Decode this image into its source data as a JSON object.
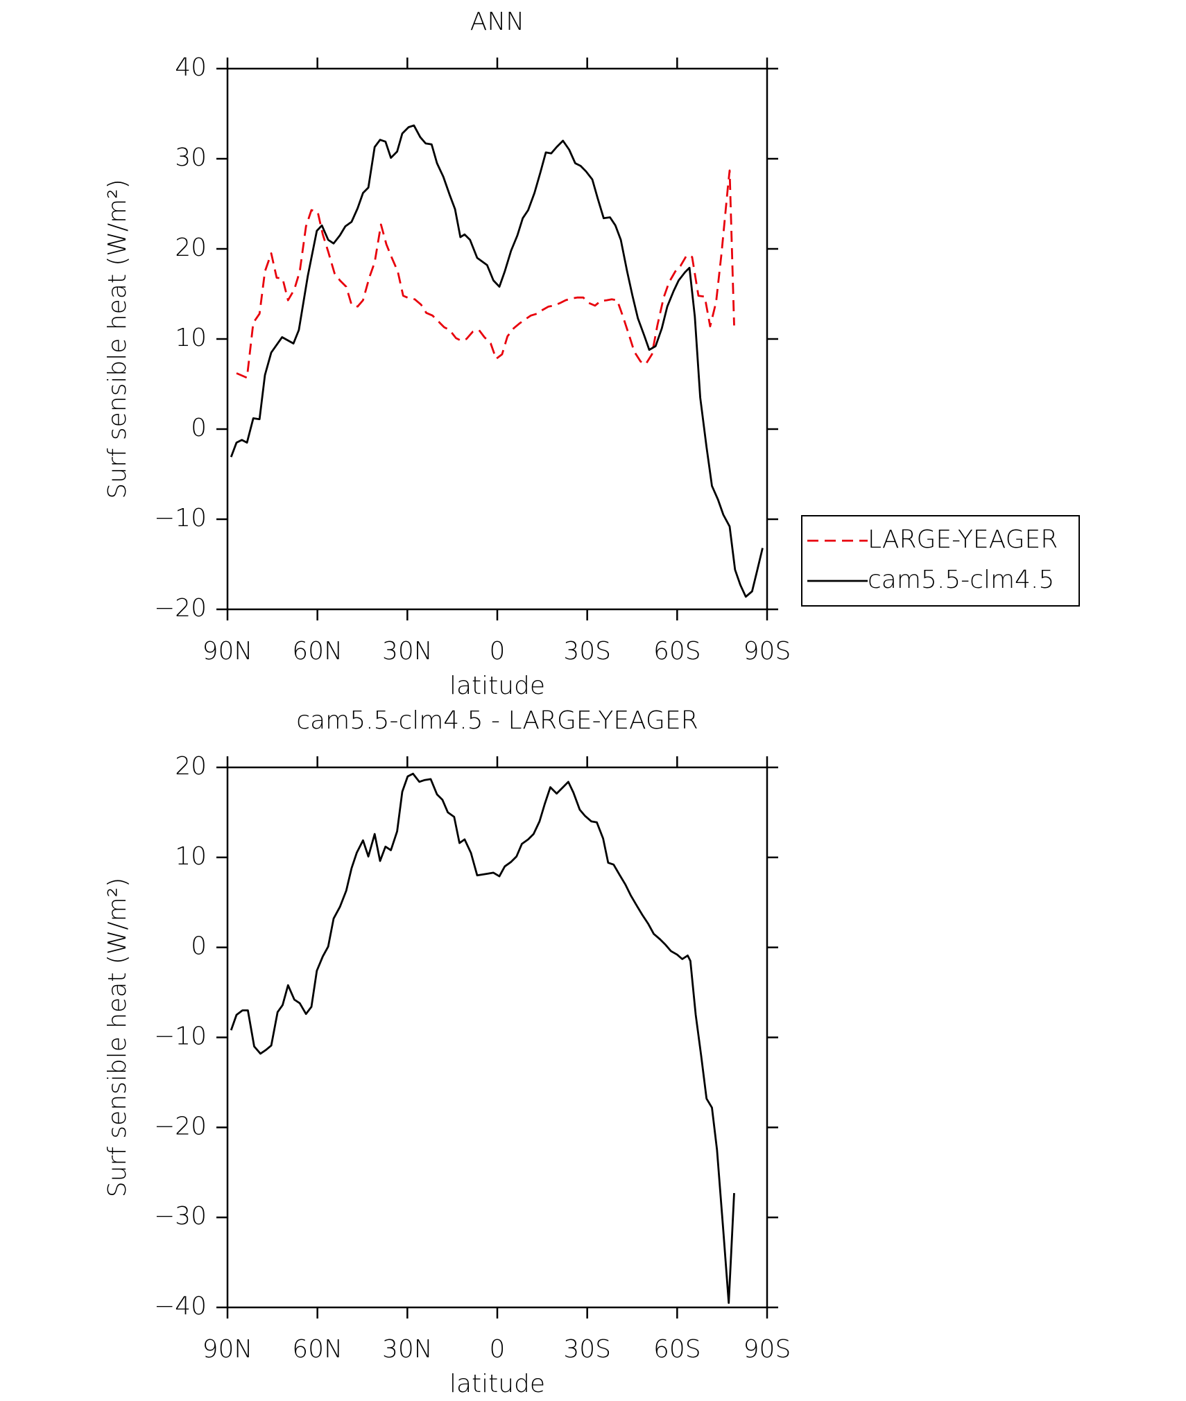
{
  "chart_data": [
    {
      "type": "line",
      "title": "ANN",
      "xlabel": "latitude",
      "ylabel": "Surf sensible heat (W/m²)",
      "xlim": [
        90,
        -90
      ],
      "xticks": [
        {
          "value": 90,
          "label": "90N"
        },
        {
          "value": 60,
          "label": "60N"
        },
        {
          "value": 30,
          "label": "30N"
        },
        0,
        {
          "value": -30,
          "label": "30S"
        },
        {
          "value": -60,
          "label": "60S"
        },
        {
          "value": -90,
          "label": "90S"
        }
      ],
      "ylim": [
        -20,
        40
      ],
      "yticks": [
        {
          "value": -20,
          "label": "−20"
        },
        {
          "value": -10,
          "label": "−10"
        },
        0,
        10,
        20,
        30,
        40
      ],
      "legend": "right",
      "series": [
        {
          "name": "LARGE-YEAGER",
          "color": "#e8000b",
          "dash": true,
          "x": [
            87,
            83.5,
            81.4,
            79.3,
            77.5,
            75.4,
            73.6,
            71.6,
            69.8,
            67.7,
            65.9,
            63.8,
            62,
            59.9,
            58.2,
            56.4,
            54.3,
            52.5,
            50.4,
            48.6,
            46.6,
            44.8,
            42.7,
            40.9,
            38.8,
            37,
            35.3,
            33.2,
            31.4,
            29.3,
            27.5,
            25.4,
            23.7,
            21.6,
            19.8,
            17.7,
            15.9,
            13.8,
            12,
            10.3,
            8.2,
            6.1,
            4.3,
            2.2,
            0.4,
            -1.6,
            -3.4,
            -5.5,
            -7.3,
            -9.4,
            -11.2,
            -13.2,
            -15,
            -17.1,
            -18.9,
            -21,
            -22.8,
            -24.8,
            -26.6,
            -28.7,
            -30.5,
            -32.6,
            -34.4,
            -36.5,
            -38.2,
            -40,
            -41.8,
            -43.9,
            -45.7,
            -47.8,
            -49.5,
            -51.6,
            -53.4,
            -55.5,
            -57.3,
            -59.4,
            -61.1,
            -63.2,
            -65,
            -67.1,
            -69.2,
            -71,
            -73,
            -74.8,
            -76.9,
            -77.5,
            -79
          ],
          "values": [
            6.2,
            5.7,
            11.8,
            12.8,
            17.5,
            19.5,
            16.8,
            16.7,
            14.3,
            15.5,
            17.5,
            22.5,
            24.3,
            24.1,
            21.6,
            19.7,
            17.3,
            16.5,
            15.8,
            13.8,
            13.6,
            14.3,
            16.8,
            18.5,
            22.7,
            20.5,
            19.1,
            17.5,
            14.8,
            14.5,
            14.4,
            13.8,
            12.9,
            12.6,
            12,
            11.3,
            11,
            10.1,
            9.8,
            10,
            10.8,
            11,
            10.2,
            9.5,
            7.8,
            8.3,
            10.3,
            11.2,
            11.7,
            12.2,
            12.6,
            12.8,
            13.2,
            13.6,
            13.7,
            14,
            14.3,
            14.5,
            14.6,
            14.6,
            14,
            13.7,
            14.2,
            14.3,
            14.4,
            14.3,
            12.6,
            10.5,
            8.6,
            7.5,
            7.2,
            8.3,
            11.5,
            14.6,
            16.3,
            17.5,
            18.1,
            19.3,
            19.1,
            14.8,
            14.7,
            11.4,
            14.1,
            19.5,
            26.8,
            28.7,
            11.5
          ]
        },
        {
          "name": "cam5.5-clm4.5",
          "color": "#000000",
          "x": [
            88.8,
            87,
            85.2,
            83.5,
            81.4,
            79.3,
            77.5,
            75.4,
            71.8,
            68,
            66.2,
            63.2,
            60.2,
            58.5,
            56.4,
            54.6,
            52.5,
            50.7,
            48.6,
            46.6,
            44.8,
            43,
            40.9,
            39.1,
            37.3,
            35.5,
            33.4,
            31.7,
            29.6,
            27.8,
            25.7,
            23.9,
            21.9,
            20.1,
            18,
            15.9,
            14.1,
            12.3,
            10.9,
            9.1,
            6.7,
            3.4,
            1.3,
            -0.7,
            -2.5,
            -4.6,
            -6.7,
            -8.5,
            -10.3,
            -12.4,
            -14.4,
            -16.2,
            -18,
            -19.8,
            -21.9,
            -24,
            -26,
            -27.8,
            -29.6,
            -31.7,
            -33.5,
            -35.5,
            -37.6,
            -39.4,
            -41.2,
            -43.3,
            -45.1,
            -46.9,
            -49,
            -50.7,
            -52.8,
            -54.9,
            -56.7,
            -58.8,
            -60.5,
            -62.6,
            -64.1,
            -65.9,
            -67.7,
            -69.8,
            -71.6,
            -73.6,
            -75.4,
            -77.5,
            -79.3,
            -81.1,
            -82.9,
            -85,
            -86.7,
            -88.5
          ],
          "values": [
            -3.1,
            -1.5,
            -1.2,
            -1.5,
            1.2,
            1.1,
            6,
            8.5,
            10.2,
            9.5,
            11,
            17,
            22,
            22.6,
            21,
            20.6,
            21.5,
            22.5,
            23,
            24.5,
            26.2,
            26.8,
            31.3,
            32.1,
            31.9,
            30.1,
            30.8,
            32.8,
            33.5,
            33.7,
            32.4,
            31.7,
            31.6,
            29.5,
            28,
            26,
            24.4,
            21.3,
            21.6,
            21,
            19,
            18.2,
            16.5,
            15.8,
            17.5,
            19.8,
            21.5,
            23.4,
            24.3,
            26.2,
            28.5,
            30.7,
            30.6,
            31.3,
            32,
            31,
            29.5,
            29.2,
            28.6,
            27.7,
            25.6,
            23.4,
            23.5,
            22.6,
            21,
            17.5,
            14.8,
            12.3,
            10.4,
            8.8,
            9.2,
            11.2,
            13.6,
            15.3,
            16.5,
            17.4,
            17.9,
            12.5,
            3.5,
            -2,
            -6.3,
            -7.8,
            -9.5,
            -10.8,
            -15.6,
            -17.3,
            -18.6,
            -18,
            -15.7,
            -13.2
          ]
        }
      ]
    },
    {
      "type": "line",
      "title": "cam5.5-clm4.5 - LARGE-YEAGER",
      "xlabel": "latitude",
      "ylabel": "Surf sensible heat (W/m²)",
      "xlim": [
        90,
        -90
      ],
      "xticks": [
        {
          "value": 90,
          "label": "90N"
        },
        {
          "value": 60,
          "label": "60N"
        },
        {
          "value": 30,
          "label": "30N"
        },
        0,
        {
          "value": -30,
          "label": "30S"
        },
        {
          "value": -60,
          "label": "60S"
        },
        {
          "value": -90,
          "label": "90S"
        }
      ],
      "ylim": [
        -40,
        20
      ],
      "yticks": [
        {
          "value": -40,
          "label": "−40"
        },
        {
          "value": -30,
          "label": "−30"
        },
        {
          "value": -20,
          "label": "−20"
        },
        {
          "value": -10,
          "label": "−10"
        },
        0,
        10,
        20
      ],
      "series": [
        {
          "color": "#000000",
          "x": [
            88.8,
            87,
            85,
            83.2,
            81.1,
            79,
            77.2,
            75.4,
            73.3,
            71.6,
            69.8,
            67.7,
            65.9,
            63.8,
            62,
            60.2,
            58.2,
            56.4,
            54.6,
            52.5,
            50.4,
            48.6,
            46.9,
            44.8,
            43,
            40.9,
            39.1,
            37.3,
            35.5,
            33.4,
            31.7,
            29.9,
            28.1,
            26,
            24.2,
            22.2,
            20.1,
            18.3,
            16.5,
            14.4,
            12.6,
            10.9,
            8.8,
            6.7,
            3.1,
            1.3,
            -0.7,
            -2.5,
            -4.6,
            -6.4,
            -8.2,
            -10.3,
            -12.1,
            -14.1,
            -15.9,
            -17.7,
            -19.8,
            -21.9,
            -23.7,
            -25.4,
            -27.5,
            -29.3,
            -31.4,
            -33.2,
            -35.3,
            -37,
            -38.8,
            -40.9,
            -42.7,
            -44.5,
            -46.6,
            -48.4,
            -50.4,
            -52.2,
            -54.3,
            -56.1,
            -57.9,
            -60,
            -61.7,
            -63.5,
            -64.4,
            -66.2,
            -68,
            -69.8,
            -71.6,
            -73.3,
            -75.4,
            -77.2,
            -79
          ],
          "values": [
            -9.2,
            -7.5,
            -7,
            -7,
            -11,
            -11.8,
            -11.4,
            -10.9,
            -7.2,
            -6.4,
            -4.2,
            -5.8,
            -6.2,
            -7.4,
            -6.6,
            -2.6,
            -1,
            0.1,
            3.2,
            4.5,
            6.3,
            8.8,
            10.5,
            11.9,
            10.1,
            12.6,
            9.6,
            11.2,
            10.8,
            12.9,
            17.3,
            19,
            19.3,
            18.4,
            18.6,
            18.7,
            17,
            16.4,
            15,
            14.5,
            11.6,
            12,
            10.5,
            8,
            8.2,
            8.3,
            7.9,
            9,
            9.5,
            10.1,
            11.5,
            12,
            12.6,
            14,
            16,
            17.8,
            17.1,
            17.8,
            18.4,
            17.2,
            15.3,
            14.6,
            14,
            13.9,
            12.1,
            9.4,
            9.2,
            8,
            7,
            5.8,
            4.6,
            3.6,
            2.6,
            1.5,
            0.9,
            0.3,
            -0.4,
            -0.8,
            -1.3,
            -0.9,
            -1.5,
            -7.5,
            -12,
            -16.8,
            -17.8,
            -22.5,
            -31.5,
            -39.5,
            -27.3
          ]
        }
      ]
    }
  ]
}
